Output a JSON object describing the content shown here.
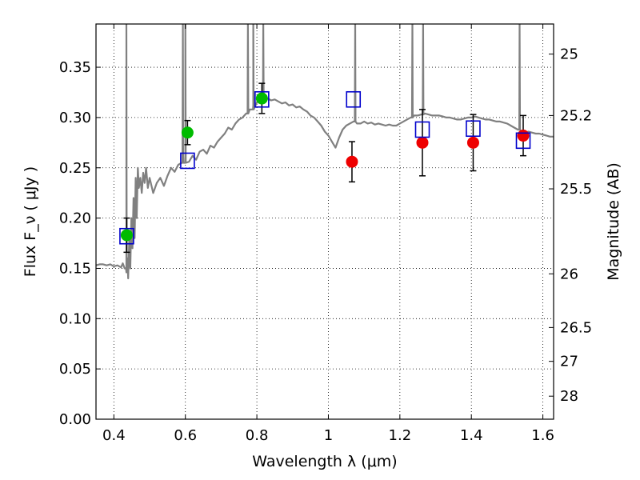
{
  "chart_data": {
    "type": "scatter",
    "xlabel": "Wavelength  λ (μm)",
    "ylabel": "Flux  F_ν  ( μJy )",
    "ylabel_right": "Magnitude (AB)",
    "xlim": [
      0.35,
      1.63
    ],
    "ylim": [
      0.0,
      0.393
    ],
    "grid": true,
    "x_ticks": [
      {
        "value": 0.4,
        "label": "0.4"
      },
      {
        "value": 0.6,
        "label": "0.6"
      },
      {
        "value": 0.8,
        "label": "0.8"
      },
      {
        "value": 1.0,
        "label": "1"
      },
      {
        "value": 1.2,
        "label": "1.2"
      },
      {
        "value": 1.4,
        "label": "1.4"
      },
      {
        "value": 1.6,
        "label": "1.6"
      }
    ],
    "y_ticks": [
      {
        "value": 0.0,
        "label": "0.00"
      },
      {
        "value": 0.05,
        "label": "0.05"
      },
      {
        "value": 0.1,
        "label": "0.10"
      },
      {
        "value": 0.15,
        "label": "0.15"
      },
      {
        "value": 0.2,
        "label": "0.20"
      },
      {
        "value": 0.25,
        "label": "0.25"
      },
      {
        "value": 0.3,
        "label": "0.30"
      },
      {
        "value": 0.35,
        "label": "0.35"
      }
    ],
    "right_ticks": [
      {
        "label": "25",
        "magnitude": 25.0
      },
      {
        "label": "25.2",
        "magnitude": 25.2
      },
      {
        "label": "25.5",
        "magnitude": 25.5
      },
      {
        "label": "26",
        "magnitude": 26.0
      },
      {
        "label": "26.5",
        "magnitude": 26.5
      },
      {
        "label": "27",
        "magnitude": 27.0
      },
      {
        "label": "28",
        "magnitude": 28.0
      }
    ],
    "colors": {
      "spectrum": "#808080",
      "green": "#00bb00",
      "red": "#ee0000",
      "model": "#0000cc",
      "error": "#000000"
    },
    "spectrum": [
      [
        0.35,
        0.153
      ],
      [
        0.36,
        0.154
      ],
      [
        0.37,
        0.154
      ],
      [
        0.38,
        0.153
      ],
      [
        0.39,
        0.154
      ],
      [
        0.4,
        0.152
      ],
      [
        0.41,
        0.153
      ],
      [
        0.42,
        0.151
      ],
      [
        0.425,
        0.155
      ],
      [
        0.43,
        0.15
      ],
      [
        0.435,
        0.146
      ],
      [
        0.438,
        0.16
      ],
      [
        0.44,
        0.14
      ],
      [
        0.443,
        0.18
      ],
      [
        0.446,
        0.15
      ],
      [
        0.449,
        0.2
      ],
      [
        0.452,
        0.17
      ],
      [
        0.455,
        0.22
      ],
      [
        0.458,
        0.18
      ],
      [
        0.461,
        0.24
      ],
      [
        0.464,
        0.2
      ],
      [
        0.467,
        0.25
      ],
      [
        0.47,
        0.23
      ],
      [
        0.474,
        0.24
      ],
      [
        0.478,
        0.225
      ],
      [
        0.482,
        0.245
      ],
      [
        0.486,
        0.235
      ],
      [
        0.49,
        0.25
      ],
      [
        0.495,
        0.23
      ],
      [
        0.5,
        0.24
      ],
      [
        0.51,
        0.225
      ],
      [
        0.52,
        0.235
      ],
      [
        0.53,
        0.24
      ],
      [
        0.54,
        0.232
      ],
      [
        0.55,
        0.242
      ],
      [
        0.56,
        0.25
      ],
      [
        0.57,
        0.246
      ],
      [
        0.58,
        0.253
      ],
      [
        0.59,
        0.255
      ],
      [
        0.6,
        0.262
      ],
      [
        0.61,
        0.256
      ],
      [
        0.62,
        0.262
      ],
      [
        0.63,
        0.258
      ],
      [
        0.64,
        0.266
      ],
      [
        0.65,
        0.268
      ],
      [
        0.66,
        0.264
      ],
      [
        0.67,
        0.272
      ],
      [
        0.68,
        0.27
      ],
      [
        0.69,
        0.276
      ],
      [
        0.7,
        0.28
      ],
      [
        0.71,
        0.284
      ],
      [
        0.72,
        0.29
      ],
      [
        0.73,
        0.288
      ],
      [
        0.74,
        0.294
      ],
      [
        0.75,
        0.298
      ],
      [
        0.76,
        0.3
      ],
      [
        0.77,
        0.304
      ],
      [
        0.78,
        0.308
      ],
      [
        0.79,
        0.312
      ],
      [
        0.8,
        0.315
      ],
      [
        0.81,
        0.318
      ],
      [
        0.82,
        0.32
      ],
      [
        0.83,
        0.319
      ],
      [
        0.84,
        0.317
      ],
      [
        0.85,
        0.318
      ],
      [
        0.86,
        0.316
      ],
      [
        0.87,
        0.314
      ],
      [
        0.88,
        0.315
      ],
      [
        0.89,
        0.312
      ],
      [
        0.9,
        0.313
      ],
      [
        0.91,
        0.31
      ],
      [
        0.92,
        0.311
      ],
      [
        0.93,
        0.308
      ],
      [
        0.94,
        0.306
      ],
      [
        0.95,
        0.302
      ],
      [
        0.96,
        0.3
      ],
      [
        0.97,
        0.296
      ],
      [
        0.98,
        0.292
      ],
      [
        0.99,
        0.286
      ],
      [
        1.0,
        0.282
      ],
      [
        1.01,
        0.276
      ],
      [
        1.02,
        0.27
      ],
      [
        1.03,
        0.28
      ],
      [
        1.04,
        0.288
      ],
      [
        1.05,
        0.292
      ],
      [
        1.06,
        0.294
      ],
      [
        1.07,
        0.296
      ],
      [
        1.08,
        0.294
      ],
      [
        1.09,
        0.294
      ],
      [
        1.1,
        0.296
      ],
      [
        1.11,
        0.294
      ],
      [
        1.12,
        0.295
      ],
      [
        1.13,
        0.293
      ],
      [
        1.14,
        0.294
      ],
      [
        1.15,
        0.293
      ],
      [
        1.16,
        0.292
      ],
      [
        1.17,
        0.293
      ],
      [
        1.18,
        0.292
      ],
      [
        1.19,
        0.292
      ],
      [
        1.2,
        0.294
      ],
      [
        1.21,
        0.296
      ],
      [
        1.22,
        0.298
      ],
      [
        1.23,
        0.3
      ],
      [
        1.24,
        0.302
      ],
      [
        1.25,
        0.302
      ],
      [
        1.26,
        0.303
      ],
      [
        1.27,
        0.304
      ],
      [
        1.28,
        0.303
      ],
      [
        1.29,
        0.302
      ],
      [
        1.3,
        0.302
      ],
      [
        1.31,
        0.302
      ],
      [
        1.32,
        0.301
      ],
      [
        1.33,
        0.3
      ],
      [
        1.34,
        0.3
      ],
      [
        1.35,
        0.299
      ],
      [
        1.36,
        0.298
      ],
      [
        1.37,
        0.298
      ],
      [
        1.38,
        0.299
      ],
      [
        1.39,
        0.3
      ],
      [
        1.4,
        0.3
      ],
      [
        1.41,
        0.301
      ],
      [
        1.42,
        0.3
      ],
      [
        1.43,
        0.299
      ],
      [
        1.44,
        0.298
      ],
      [
        1.45,
        0.298
      ],
      [
        1.46,
        0.297
      ],
      [
        1.47,
        0.296
      ],
      [
        1.48,
        0.296
      ],
      [
        1.49,
        0.295
      ],
      [
        1.5,
        0.294
      ],
      [
        1.51,
        0.292
      ],
      [
        1.52,
        0.29
      ],
      [
        1.53,
        0.288
      ],
      [
        1.54,
        0.286
      ],
      [
        1.55,
        0.285
      ],
      [
        1.56,
        0.286
      ],
      [
        1.57,
        0.285
      ],
      [
        1.58,
        0.284
      ],
      [
        1.59,
        0.284
      ],
      [
        1.6,
        0.283
      ],
      [
        1.61,
        0.282
      ],
      [
        1.62,
        0.281
      ],
      [
        1.63,
        0.281
      ]
    ],
    "emission_lines": [
      {
        "x": 0.435,
        "peak": 0.393
      },
      {
        "x": 0.593,
        "peak": 0.393
      },
      {
        "x": 0.6,
        "peak": 0.393
      },
      {
        "x": 0.775,
        "peak": 0.393
      },
      {
        "x": 0.79,
        "peak": 0.393
      },
      {
        "x": 0.818,
        "peak": 0.393
      },
      {
        "x": 1.075,
        "peak": 0.393
      },
      {
        "x": 1.235,
        "peak": 0.393
      },
      {
        "x": 1.265,
        "peak": 0.393
      },
      {
        "x": 1.535,
        "peak": 0.393
      }
    ],
    "series": [
      {
        "marker": "circle",
        "color_key": "green",
        "points": [
          {
            "x": 0.436,
            "y": 0.183,
            "err": 0.017
          },
          {
            "x": 0.606,
            "y": 0.285,
            "err": 0.012
          },
          {
            "x": 0.814,
            "y": 0.319,
            "err": 0.015
          }
        ]
      },
      {
        "marker": "circle",
        "color_key": "red",
        "points": [
          {
            "x": 1.066,
            "y": 0.256,
            "err": 0.02
          },
          {
            "x": 1.263,
            "y": 0.275,
            "err": 0.033
          },
          {
            "x": 1.405,
            "y": 0.275,
            "err": 0.028
          },
          {
            "x": 1.545,
            "y": 0.282,
            "err": 0.02
          }
        ]
      },
      {
        "marker": "square-open",
        "color_key": "model",
        "points": [
          {
            "x": 0.436,
            "y": 0.182
          },
          {
            "x": 0.606,
            "y": 0.257
          },
          {
            "x": 0.814,
            "y": 0.318
          },
          {
            "x": 1.07,
            "y": 0.318
          },
          {
            "x": 1.263,
            "y": 0.288
          },
          {
            "x": 1.405,
            "y": 0.289
          },
          {
            "x": 1.545,
            "y": 0.277
          }
        ]
      }
    ]
  }
}
